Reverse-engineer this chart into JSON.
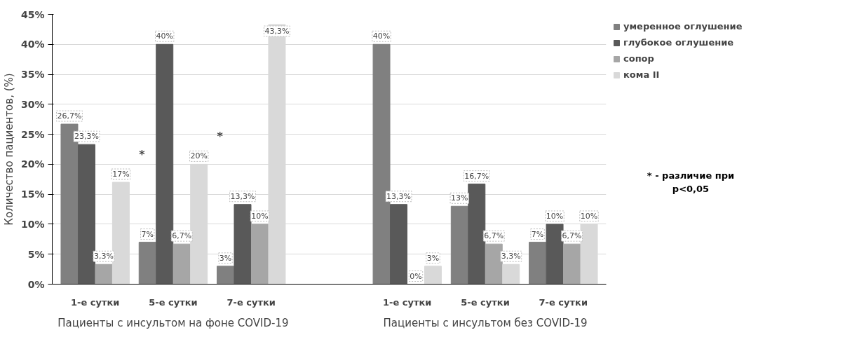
{
  "chart_data": {
    "type": "bar",
    "ylabel": "Количество пациентов, (%)",
    "categories": [
      "1-е сутки",
      "5-е сутки",
      "7-е сутки",
      null,
      "1-е сутки",
      "5-е сутки",
      "7-е сутки"
    ],
    "series": [
      {
        "name": "умеренное оглушение",
        "color": "#808080",
        "values": [
          26.7,
          7,
          3,
          null,
          40,
          13,
          7
        ],
        "value_labels": [
          "26,7%",
          "7%",
          "3%",
          null,
          "40%",
          "13%",
          "7%"
        ]
      },
      {
        "name": "глубокое оглушение",
        "color": "#595959",
        "values": [
          23.3,
          40,
          13.3,
          null,
          13.3,
          16.7,
          10
        ],
        "value_labels": [
          "23,3%",
          "40%",
          "13,3%",
          null,
          "13,3%",
          "16,7%",
          "10%"
        ]
      },
      {
        "name": "сопор",
        "color": "#a6a6a6",
        "values": [
          3.3,
          6.7,
          10,
          null,
          0,
          6.7,
          6.7
        ],
        "value_labels": [
          "3,3%",
          "6,7%",
          "10%",
          null,
          "0%",
          "6,7%",
          "6,7%"
        ]
      },
      {
        "name": "кома II",
        "color": "#d9d9d9",
        "values": [
          17,
          20,
          43.3,
          null,
          3,
          3.3,
          10
        ],
        "value_labels": [
          "17%",
          "20%",
          "43,3%",
          null,
          "3%",
          "3,3%",
          "10%"
        ]
      }
    ],
    "ylim": [
      0,
      45
    ],
    "yticks": [
      {
        "value": 0,
        "label": "0%"
      },
      {
        "value": 5,
        "label": "5%"
      },
      {
        "value": 10,
        "label": "10%"
      },
      {
        "value": 15,
        "label": "15%"
      },
      {
        "value": 20,
        "label": "20%"
      },
      {
        "value": 25,
        "label": "25%"
      },
      {
        "value": 30,
        "label": "30%"
      },
      {
        "value": 35,
        "label": "35%"
      },
      {
        "value": 40,
        "label": "40%"
      },
      {
        "value": 45,
        "label": "45%"
      }
    ],
    "grid": "y",
    "legend": "right",
    "annotations": [
      "Пациенты с инсультом на фоне COVID-19",
      "Пациенты с инсультом без COVID-19",
      "*",
      "*",
      "* - различие при p<0,05"
    ]
  }
}
